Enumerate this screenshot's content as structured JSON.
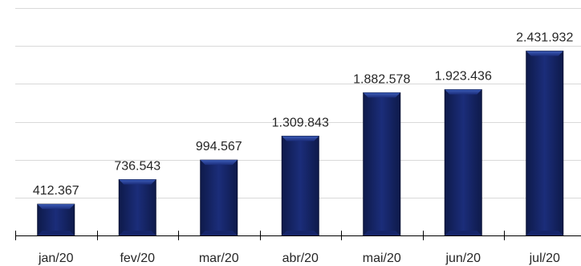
{
  "chart_data": {
    "type": "bar",
    "title": "",
    "xlabel": "",
    "ylabel": "",
    "categories": [
      "jan/20",
      "fev/20",
      "mar/20",
      "abr/20",
      "mai/20",
      "jun/20",
      "jul/20"
    ],
    "values": [
      412367,
      736543,
      994567,
      1309843,
      1882578,
      1923436,
      2431932
    ],
    "value_labels": [
      "412.367",
      "736.543",
      "994.567",
      "1.309.843",
      "1.882.578",
      "1.923.436",
      "2.431.932"
    ],
    "ylim": [
      0,
      3000000
    ],
    "grid": true,
    "legend": "none",
    "colors": {
      "bar_dark": "#0e1a4a",
      "bar_mid": "#1b2d7a",
      "bar_light": "#3c5cb8",
      "grid": "#d9d9d9"
    }
  }
}
